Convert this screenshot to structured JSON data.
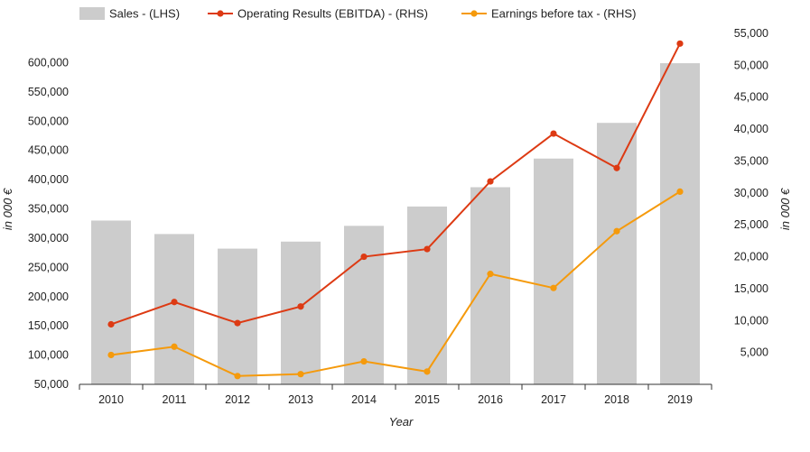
{
  "chart_data": {
    "type": "bar",
    "categories": [
      "2010",
      "2011",
      "2012",
      "2013",
      "2014",
      "2015",
      "2016",
      "2017",
      "2018",
      "2019"
    ],
    "xlabel": "Year",
    "ylabel_left": "in 000 €",
    "ylabel_right": "in 000 €",
    "ylim_left": [
      50000,
      650000
    ],
    "ylim_right": [
      0,
      55000
    ],
    "yticks_left": [
      "50,000",
      "100,000",
      "150,000",
      "200,000",
      "250,000",
      "300,000",
      "350,000",
      "400,000",
      "450,000",
      "500,000",
      "550,000",
      "600,000"
    ],
    "yticks_right": [
      "5,000",
      "10,000",
      "15,000",
      "20,000",
      "25,000",
      "30,000",
      "35,000",
      "40,000",
      "45,000",
      "50,000",
      "55,000"
    ],
    "legend_position": "top",
    "series": [
      {
        "name": "Sales - (LHS)",
        "kind": "bar",
        "axis": "left",
        "color": "#cccccc",
        "values": [
          330000,
          307000,
          282000,
          294000,
          321000,
          354000,
          387000,
          436000,
          497000,
          599000
        ]
      },
      {
        "name": "Operating Results (EBITDA) - (RHS)",
        "kind": "line",
        "axis": "right",
        "color": "#dd3a13",
        "values": [
          9400,
          12900,
          9600,
          12200,
          20000,
          21200,
          31800,
          39300,
          33900,
          53400
        ]
      },
      {
        "name": "Earnings before tax - (RHS)",
        "kind": "line",
        "axis": "right",
        "color": "#f59a0c",
        "values": [
          4600,
          5900,
          1300,
          1600,
          3600,
          2000,
          17300,
          15100,
          24000,
          30200
        ]
      }
    ]
  }
}
